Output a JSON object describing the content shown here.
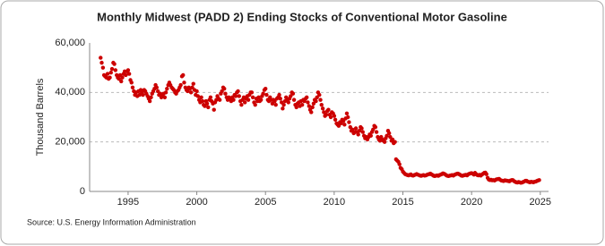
{
  "chart_data": {
    "type": "scatter",
    "title": "Monthly Midwest (PADD 2) Ending Stocks of Conventional Motor Gasoline",
    "y_label": "Thousand Barrels",
    "source": "Source: U.S. Energy Information Administration",
    "color": "#cc0000",
    "grid": true,
    "xlim": [
      1992.2,
      2025.6
    ],
    "xticks": [
      1995,
      2000,
      2005,
      2010,
      2015,
      2020,
      2025
    ],
    "ylim": [
      0,
      60000
    ],
    "yticks": [
      0,
      {
        "value": 20000,
        "label": "20,000"
      },
      {
        "value": 40000,
        "label": "40,000"
      },
      {
        "value": 60000,
        "label": "60,000"
      }
    ],
    "x": [
      1993,
      1993.08,
      1993.17,
      1993.25,
      1993.33,
      1993.42,
      1993.5,
      1993.58,
      1993.67,
      1993.75,
      1993.83,
      1993.92,
      1994,
      1994.08,
      1994.17,
      1994.25,
      1994.33,
      1994.42,
      1994.5,
      1994.58,
      1994.67,
      1994.75,
      1994.83,
      1994.92,
      1995,
      1995.08,
      1995.17,
      1995.25,
      1995.33,
      1995.42,
      1995.5,
      1995.58,
      1995.67,
      1995.75,
      1995.83,
      1995.92,
      1996,
      1996.08,
      1996.17,
      1996.25,
      1996.33,
      1996.42,
      1996.5,
      1996.58,
      1996.67,
      1996.75,
      1996.83,
      1996.92,
      1997,
      1997.08,
      1997.17,
      1997.25,
      1997.33,
      1997.42,
      1997.5,
      1997.58,
      1997.67,
      1997.75,
      1997.83,
      1997.92,
      1998,
      1998.08,
      1998.17,
      1998.25,
      1998.33,
      1998.42,
      1998.5,
      1998.58,
      1998.67,
      1998.75,
      1998.83,
      1998.92,
      1999,
      1999.08,
      1999.17,
      1999.25,
      1999.33,
      1999.42,
      1999.5,
      1999.58,
      1999.67,
      1999.75,
      1999.83,
      1999.92,
      2000,
      2000.08,
      2000.17,
      2000.25,
      2000.33,
      2000.42,
      2000.5,
      2000.58,
      2000.67,
      2000.75,
      2000.83,
      2000.92,
      2001,
      2001.08,
      2001.17,
      2001.25,
      2001.33,
      2001.42,
      2001.5,
      2001.58,
      2001.67,
      2001.75,
      2001.83,
      2001.92,
      2002,
      2002.08,
      2002.17,
      2002.25,
      2002.33,
      2002.42,
      2002.5,
      2002.58,
      2002.67,
      2002.75,
      2002.83,
      2002.92,
      2003,
      2003.08,
      2003.17,
      2003.25,
      2003.33,
      2003.42,
      2003.5,
      2003.58,
      2003.67,
      2003.75,
      2003.83,
      2003.92,
      2004,
      2004.08,
      2004.17,
      2004.25,
      2004.33,
      2004.42,
      2004.5,
      2004.58,
      2004.67,
      2004.75,
      2004.83,
      2004.92,
      2005,
      2005.08,
      2005.17,
      2005.25,
      2005.33,
      2005.42,
      2005.5,
      2005.58,
      2005.67,
      2005.75,
      2005.83,
      2005.92,
      2006,
      2006.08,
      2006.17,
      2006.25,
      2006.33,
      2006.42,
      2006.5,
      2006.58,
      2006.67,
      2006.75,
      2006.83,
      2006.92,
      2007,
      2007.08,
      2007.17,
      2007.25,
      2007.33,
      2007.42,
      2007.5,
      2007.58,
      2007.67,
      2007.75,
      2007.83,
      2007.92,
      2008,
      2008.08,
      2008.17,
      2008.25,
      2008.33,
      2008.42,
      2008.5,
      2008.58,
      2008.67,
      2008.75,
      2008.83,
      2008.92,
      2009,
      2009.08,
      2009.17,
      2009.25,
      2009.33,
      2009.42,
      2009.5,
      2009.58,
      2009.67,
      2009.75,
      2009.83,
      2009.92,
      2010,
      2010.08,
      2010.17,
      2010.25,
      2010.33,
      2010.42,
      2010.5,
      2010.58,
      2010.67,
      2010.75,
      2010.83,
      2010.92,
      2011,
      2011.08,
      2011.17,
      2011.25,
      2011.33,
      2011.42,
      2011.5,
      2011.58,
      2011.67,
      2011.75,
      2011.83,
      2011.92,
      2012,
      2012.08,
      2012.17,
      2012.25,
      2012.33,
      2012.42,
      2012.5,
      2012.58,
      2012.67,
      2012.75,
      2012.83,
      2012.92,
      2013,
      2013.08,
      2013.17,
      2013.25,
      2013.33,
      2013.42,
      2013.5,
      2013.58,
      2013.67,
      2013.75,
      2013.83,
      2013.92,
      2014,
      2014.08,
      2014.17,
      2014.25,
      2014.33,
      2014.42,
      2014.5,
      2014.58,
      2014.67,
      2014.75,
      2014.83,
      2014.92,
      2015,
      2015.08,
      2015.17,
      2015.25,
      2015.33,
      2015.42,
      2015.5,
      2015.58,
      2015.67,
      2015.75,
      2015.83,
      2015.92,
      2016,
      2016.08,
      2016.17,
      2016.25,
      2016.33,
      2016.42,
      2016.5,
      2016.58,
      2016.67,
      2016.75,
      2016.83,
      2016.92,
      2017,
      2017.08,
      2017.17,
      2017.25,
      2017.33,
      2017.42,
      2017.5,
      2017.58,
      2017.67,
      2017.75,
      2017.83,
      2017.92,
      2018,
      2018.08,
      2018.17,
      2018.25,
      2018.33,
      2018.42,
      2018.5,
      2018.58,
      2018.67,
      2018.75,
      2018.83,
      2018.92,
      2019,
      2019.08,
      2019.17,
      2019.25,
      2019.33,
      2019.42,
      2019.5,
      2019.58,
      2019.67,
      2019.75,
      2019.83,
      2019.92,
      2020,
      2020.08,
      2020.17,
      2020.25,
      2020.33,
      2020.42,
      2020.5,
      2020.58,
      2020.67,
      2020.75,
      2020.83,
      2020.92,
      2021,
      2021.08,
      2021.17,
      2021.25,
      2021.33,
      2021.42,
      2021.5,
      2021.58,
      2021.67,
      2021.75,
      2021.83,
      2021.92,
      2022,
      2022.08,
      2022.17,
      2022.25,
      2022.33,
      2022.42,
      2022.5,
      2022.58,
      2022.67,
      2022.75,
      2022.83,
      2022.92,
      2023,
      2023.08,
      2023.17,
      2023.25,
      2023.33,
      2023.42,
      2023.5,
      2023.58,
      2023.67,
      2023.75,
      2023.83,
      2023.92,
      2024,
      2024.08,
      2024.17,
      2024.25,
      2024.33,
      2024.42,
      2024.5,
      2024.58,
      2024.67,
      2024.75,
      2024.83,
      2024.92
    ],
    "values": [
      54000,
      52000,
      50000,
      47000,
      46500,
      46000,
      47500,
      45500,
      46000,
      48000,
      49500,
      52000,
      51500,
      49000,
      47000,
      46000,
      45500,
      47000,
      44500,
      46000,
      47500,
      48500,
      47000,
      48500,
      49000,
      47500,
      45000,
      44000,
      42000,
      40500,
      39000,
      40000,
      38500,
      40500,
      39000,
      41000,
      40000,
      39000,
      41000,
      40500,
      39500,
      38500,
      37500,
      36500,
      38000,
      39500,
      40500,
      41500,
      43000,
      42000,
      40500,
      39000,
      39500,
      38000,
      38500,
      39500,
      38000,
      40000,
      41500,
      43000,
      44000,
      43000,
      42000,
      41500,
      41000,
      40000,
      39500,
      40500,
      41000,
      42000,
      43000,
      46500,
      47000,
      44000,
      42000,
      41000,
      40500,
      42000,
      41500,
      40000,
      42000,
      43500,
      41000,
      39000,
      40500,
      38500,
      37000,
      36000,
      38000,
      36500,
      35000,
      34500,
      36500,
      35500,
      34000,
      37000,
      38000,
      36500,
      35500,
      33000,
      36000,
      37000,
      38500,
      37500,
      37000,
      39500,
      40500,
      42000,
      41500,
      39500,
      38000,
      37000,
      38000,
      37500,
      36500,
      38000,
      37000,
      39000,
      38500,
      40000,
      40500,
      38500,
      36500,
      35000,
      37000,
      38000,
      36000,
      37500,
      38500,
      37000,
      39000,
      40000,
      40000,
      38000,
      36000,
      35000,
      37500,
      36500,
      38000,
      36500,
      37000,
      38500,
      39500,
      41000,
      41500,
      39000,
      37000,
      36500,
      38000,
      37000,
      35500,
      37000,
      36500,
      35000,
      37500,
      38000,
      39000,
      37500,
      36000,
      33500,
      35000,
      36500,
      38000,
      37000,
      36000,
      37500,
      38500,
      40000,
      39500,
      37000,
      35000,
      34000,
      35500,
      36000,
      34500,
      36500,
      35000,
      37000,
      36500,
      37500,
      38000,
      36000,
      34500,
      33000,
      32000,
      34000,
      35500,
      37000,
      36500,
      38000,
      40000,
      39000,
      37000,
      35000,
      33500,
      32000,
      30500,
      31000,
      32500,
      33000,
      31000,
      30000,
      32000,
      31500,
      30500,
      29000,
      27500,
      27000,
      26500,
      28000,
      27500,
      29000,
      28500,
      27000,
      29500,
      31500,
      30000,
      28000,
      26000,
      24500,
      25000,
      23500,
      24000,
      25500,
      24000,
      23000,
      24500,
      26000,
      25500,
      24000,
      22500,
      21500,
      22000,
      21000,
      22000,
      23000,
      22500,
      24000,
      25000,
      26500,
      26000,
      24000,
      22000,
      21000,
      20500,
      22000,
      21000,
      20500,
      20000,
      21500,
      22500,
      24500,
      23500,
      22000,
      20500,
      21000,
      19500,
      20000,
      13000,
      12500,
      12000,
      11000,
      9500,
      9000,
      8000,
      7500,
      7000,
      6800,
      6600,
      6500,
      6700,
      6900,
      6500,
      6400,
      6600,
      6800,
      7000,
      6800,
      6600,
      6400,
      6300,
      6500,
      6600,
      6400,
      6500,
      6700,
      6900,
      7000,
      7200,
      6900,
      6600,
      6300,
      6200,
      6400,
      6500,
      6300,
      6600,
      6800,
      7000,
      7300,
      7100,
      6900,
      6500,
      6300,
      6200,
      6400,
      6500,
      6600,
      6400,
      6700,
      6900,
      7100,
      7200,
      7000,
      6700,
      6400,
      6300,
      6500,
      6600,
      6700,
      6500,
      6900,
      7100,
      7300,
      7400,
      7200,
      6800,
      7500,
      7000,
      6600,
      6500,
      6700,
      6400,
      6800,
      7100,
      7500,
      7600,
      7000,
      5500,
      4800,
      4600,
      4700,
      4500,
      4600,
      4400,
      4700,
      4900,
      5000,
      5100,
      4700,
      4400,
      4300,
      4200,
      4500,
      4400,
      4300,
      4200,
      4100,
      4400,
      4600,
      4600,
      4200,
      3900,
      3700,
      3600,
      3800,
      3700,
      3500,
      3600,
      3800,
      4000,
      4300,
      4300,
      4000,
      3800,
      3700,
      3900,
      3800,
      3700,
      3900,
      4000,
      4200,
      4400,
      4600
    ]
  }
}
